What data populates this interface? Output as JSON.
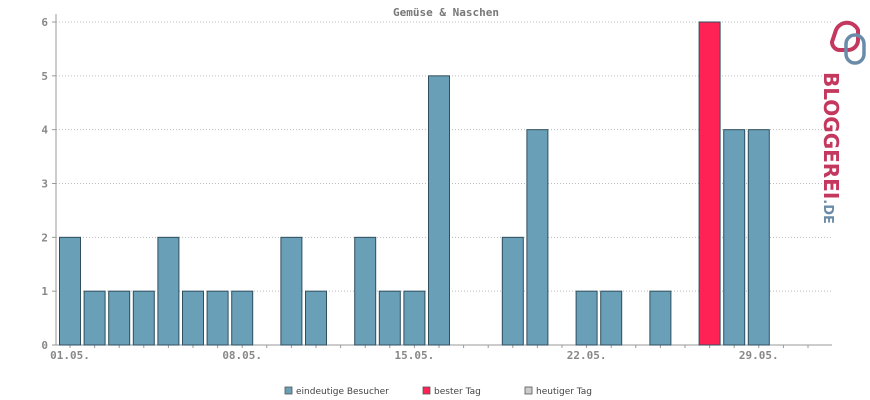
{
  "chart_data": {
    "type": "bar",
    "title": "Gemüse & Naschen",
    "xlabel": "",
    "ylabel": "",
    "ylim": [
      0,
      6
    ],
    "y_ticks": [
      0,
      1,
      2,
      3,
      4,
      5,
      6
    ],
    "grid": true,
    "days": [
      1,
      2,
      3,
      4,
      5,
      6,
      7,
      8,
      9,
      10,
      11,
      12,
      13,
      14,
      15,
      16,
      17,
      18,
      19,
      20,
      21,
      22,
      23,
      24,
      25,
      26,
      27,
      28,
      29,
      30,
      31
    ],
    "x_tick_labels": [
      {
        "day": 1,
        "label": "01.05."
      },
      {
        "day": 8,
        "label": "08.05."
      },
      {
        "day": 15,
        "label": "15.05."
      },
      {
        "day": 22,
        "label": "22.05."
      },
      {
        "day": 29,
        "label": "29.05."
      }
    ],
    "series": [
      {
        "name": "eindeutige Besucher",
        "color": "#6a9fb8",
        "values": [
          2,
          1,
          1,
          1,
          2,
          1,
          1,
          1,
          0,
          2,
          1,
          0,
          2,
          1,
          1,
          5,
          0,
          0,
          2,
          4,
          0,
          1,
          1,
          0,
          1,
          0,
          6,
          4,
          4,
          0,
          0
        ]
      }
    ],
    "best_day": {
      "day": 27,
      "value": 6,
      "color": "#ff2255"
    },
    "legend_position": "bottom-center",
    "legend": [
      {
        "label": "eindeutige Besucher",
        "color": "#6a9fb8"
      },
      {
        "label": "bester Tag",
        "color": "#ff2255"
      },
      {
        "label": "heutiger Tag",
        "color": "#cccccc"
      }
    ]
  },
  "watermark": {
    "text_main": "BLOGGEREI",
    "text_suffix": ".DE",
    "color_main": "#c4375e",
    "color_suffix": "#6a8ca8"
  }
}
